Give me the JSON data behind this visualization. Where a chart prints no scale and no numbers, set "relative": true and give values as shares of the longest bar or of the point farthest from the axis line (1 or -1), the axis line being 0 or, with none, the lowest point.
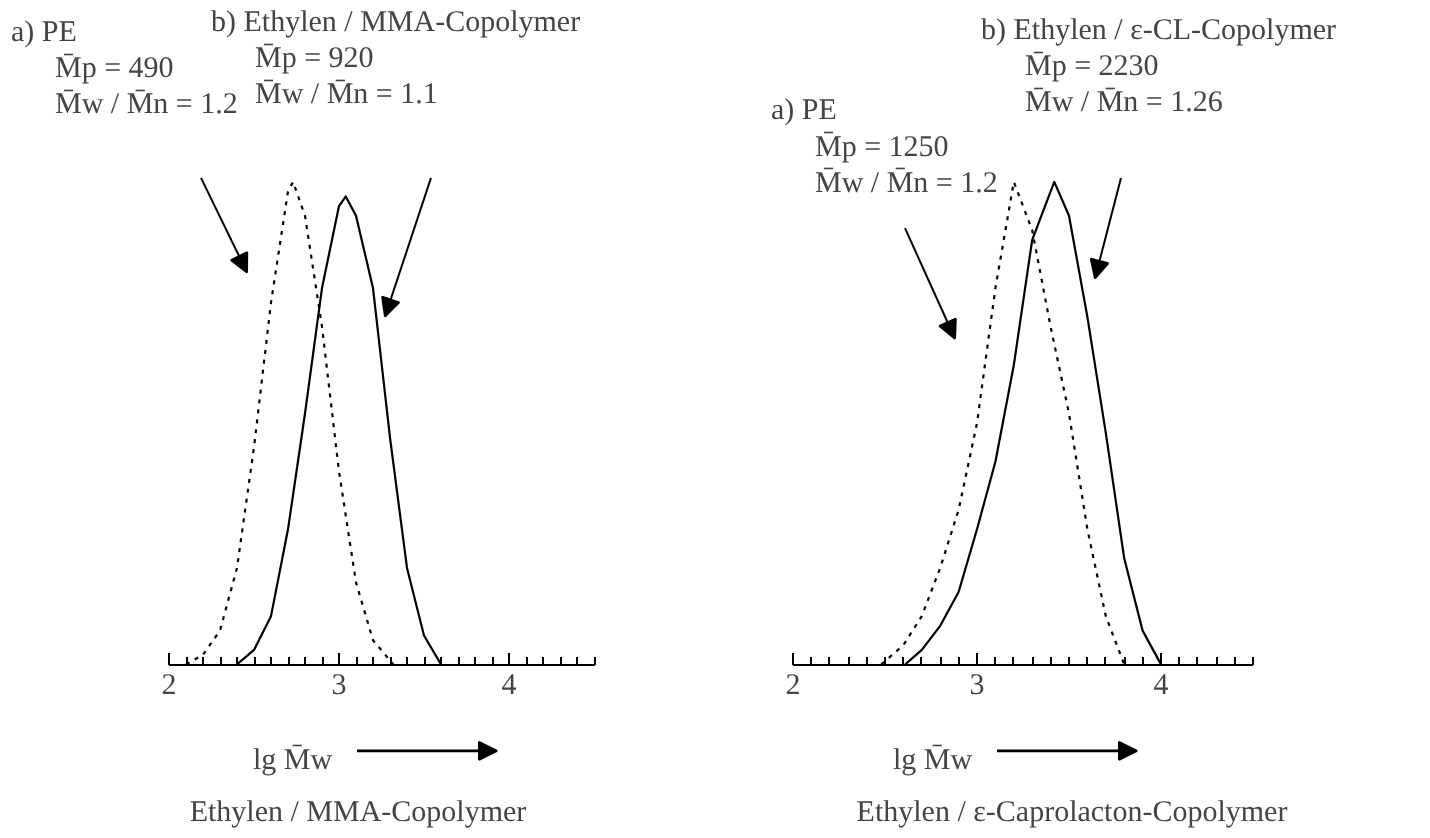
{
  "chart_data": [
    {
      "type": "line",
      "title": "Ethylen / MMA-Copolymer",
      "xlabel": "lg M̄w",
      "relative": true,
      "xlim": [
        2,
        4.5
      ],
      "xticks": [
        2,
        3,
        4
      ],
      "grid": false,
      "tick_labels": "x",
      "series": [
        {
          "color": "#000000",
          "line_style": "dotted",
          "x": [
            2.1,
            2.2,
            2.3,
            2.4,
            2.5,
            2.6,
            2.7,
            2.73,
            2.8,
            2.9,
            3.0,
            3.1,
            3.2,
            3.32
          ],
          "values": [
            0,
            0.02,
            0.07,
            0.2,
            0.45,
            0.75,
            0.98,
            1.0,
            0.93,
            0.7,
            0.4,
            0.17,
            0.05,
            0
          ]
        },
        {
          "color": "#000000",
          "line_style": "solid",
          "x": [
            2.4,
            2.5,
            2.6,
            2.7,
            2.8,
            2.9,
            3.0,
            3.04,
            3.1,
            3.2,
            3.3,
            3.4,
            3.5,
            3.6
          ],
          "values": [
            0,
            0.03,
            0.1,
            0.28,
            0.52,
            0.78,
            0.95,
            0.97,
            0.93,
            0.78,
            0.47,
            0.2,
            0.06,
            0
          ]
        }
      ],
      "annotations": [
        "a) PE\nM̄p = 490\nM̄w / M̄n = 1.2",
        "b) Ethylen / MMA-Copolymer\nM̄p = 920\nM̄w / M̄n = 1.1"
      ]
    },
    {
      "type": "line",
      "title": "Ethylen / ε-Caprolacton-Copolymer",
      "xlabel": "lg M̄w",
      "relative": true,
      "xlim": [
        2,
        4.5
      ],
      "xticks": [
        2,
        3,
        4
      ],
      "grid": false,
      "tick_labels": "x",
      "series": [
        {
          "color": "#000000",
          "line_style": "dotted",
          "x": [
            2.48,
            2.6,
            2.7,
            2.8,
            2.9,
            3.0,
            3.1,
            3.2,
            3.3,
            3.4,
            3.5,
            3.6,
            3.7,
            3.8
          ],
          "values": [
            0,
            0.04,
            0.1,
            0.2,
            0.32,
            0.5,
            0.78,
            1.0,
            0.9,
            0.7,
            0.52,
            0.28,
            0.1,
            0
          ]
        },
        {
          "color": "#000000",
          "line_style": "solid",
          "x": [
            2.61,
            2.7,
            2.8,
            2.9,
            3.0,
            3.1,
            3.2,
            3.3,
            3.42,
            3.5,
            3.6,
            3.7,
            3.8,
            3.9,
            4.0
          ],
          "values": [
            0,
            0.03,
            0.08,
            0.15,
            0.28,
            0.42,
            0.62,
            0.88,
            1.0,
            0.93,
            0.72,
            0.48,
            0.22,
            0.07,
            0
          ]
        }
      ],
      "annotations": [
        "a) PE\nM̄p = 1250\nM̄w / M̄n = 1.2",
        "b) Ethylen / ε-CL-Copolymer\nM̄p = 2230\nM̄w / M̄n = 1.26"
      ]
    }
  ]
}
